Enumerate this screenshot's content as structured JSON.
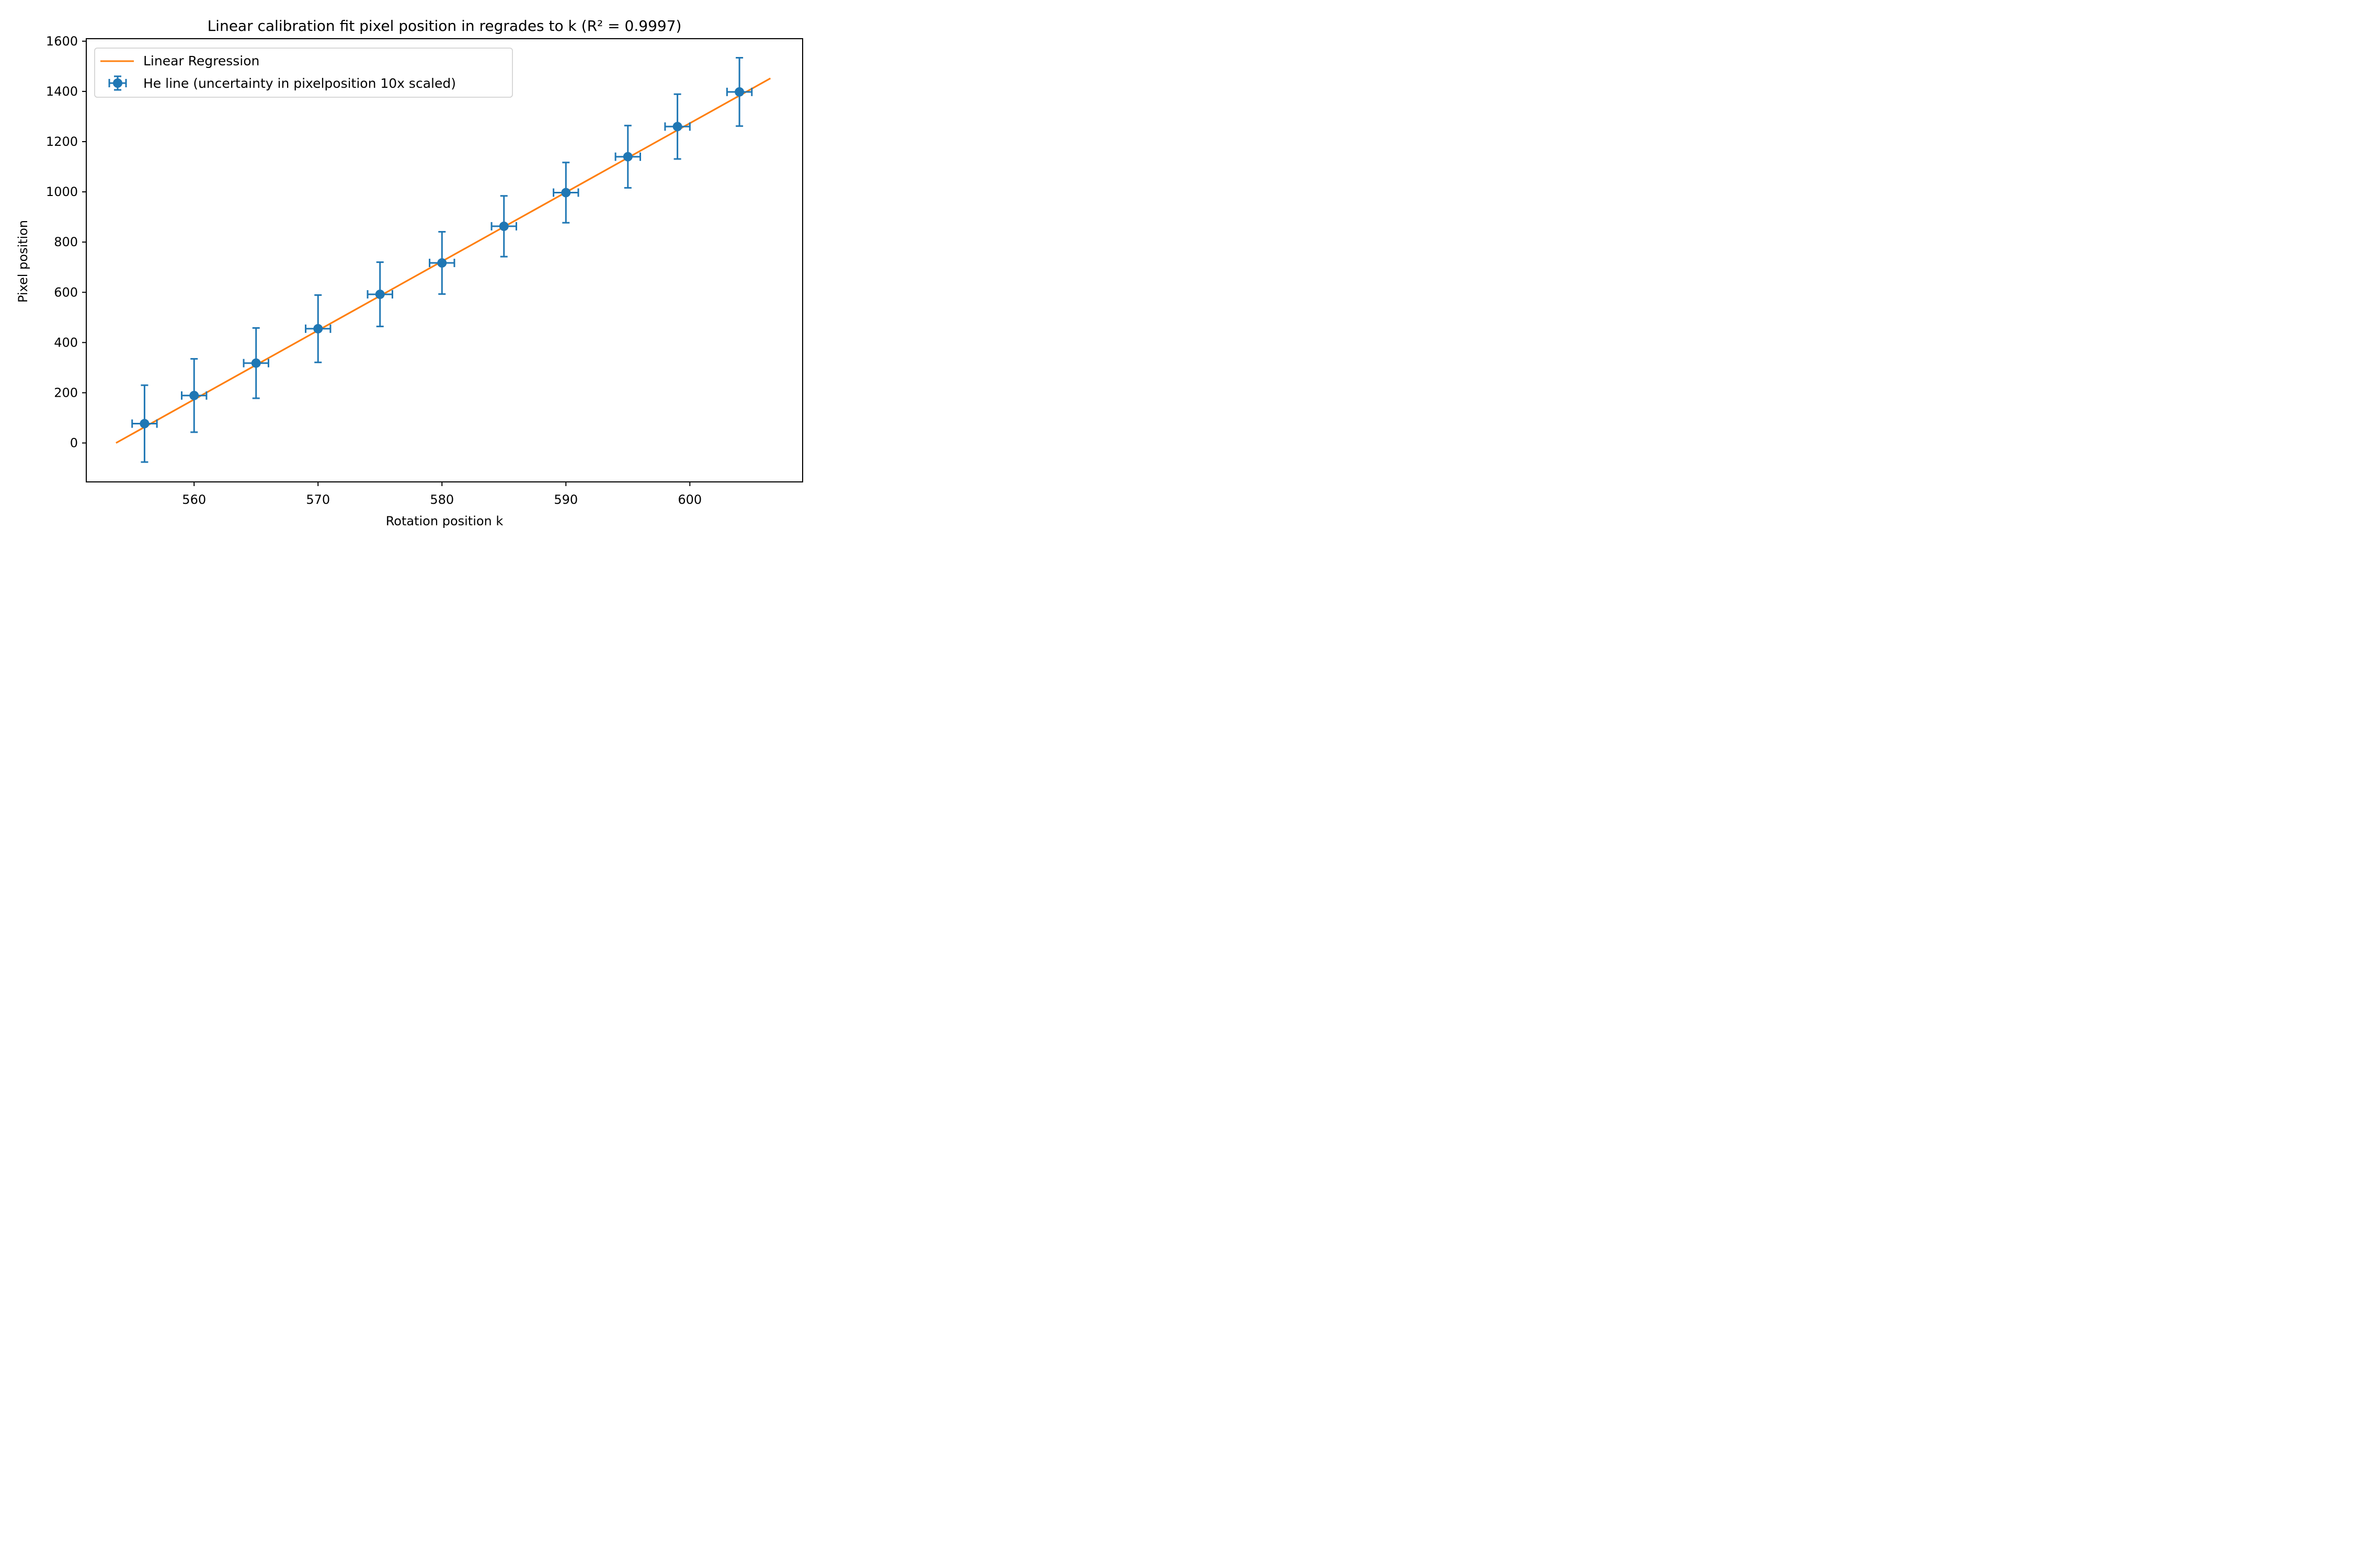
{
  "chart_data": {
    "type": "scatter",
    "title": "Linear calibration fit pixel position in regrades to k (R² = 0.9997)",
    "xlabel": "Rotation position k",
    "ylabel": "Pixel position",
    "xlim": [
      551.3,
      609.1
    ],
    "ylim": [
      -155,
      1610
    ],
    "xticks": [
      560,
      570,
      580,
      590,
      600
    ],
    "yticks": [
      0,
      200,
      400,
      600,
      800,
      1000,
      1200,
      1400,
      1600
    ],
    "grid": false,
    "legend_position": "top-left",
    "series": [
      {
        "name": "Linear Regression",
        "kind": "line",
        "color": "#ff7f0e",
        "x": [
          553.7,
          606.5
        ],
        "y": [
          0,
          1452
        ]
      },
      {
        "name": "He line (uncertainty in pixelposition 10x scaled)",
        "kind": "errorbar",
        "color": "#1f77b4",
        "x": [
          556,
          560,
          565,
          570,
          575,
          580,
          585,
          590,
          595,
          599,
          604
        ],
        "y": [
          77,
          189,
          318,
          455,
          592,
          717,
          863,
          997,
          1140,
          1260,
          1398
        ],
        "yerr": [
          153,
          146,
          140,
          134,
          128,
          124,
          121,
          120,
          124,
          129,
          136
        ],
        "xerr": [
          1.0,
          1.0,
          1.0,
          1.0,
          1.0,
          1.0,
          1.0,
          1.0,
          1.0,
          1.0,
          1.0
        ]
      }
    ]
  }
}
